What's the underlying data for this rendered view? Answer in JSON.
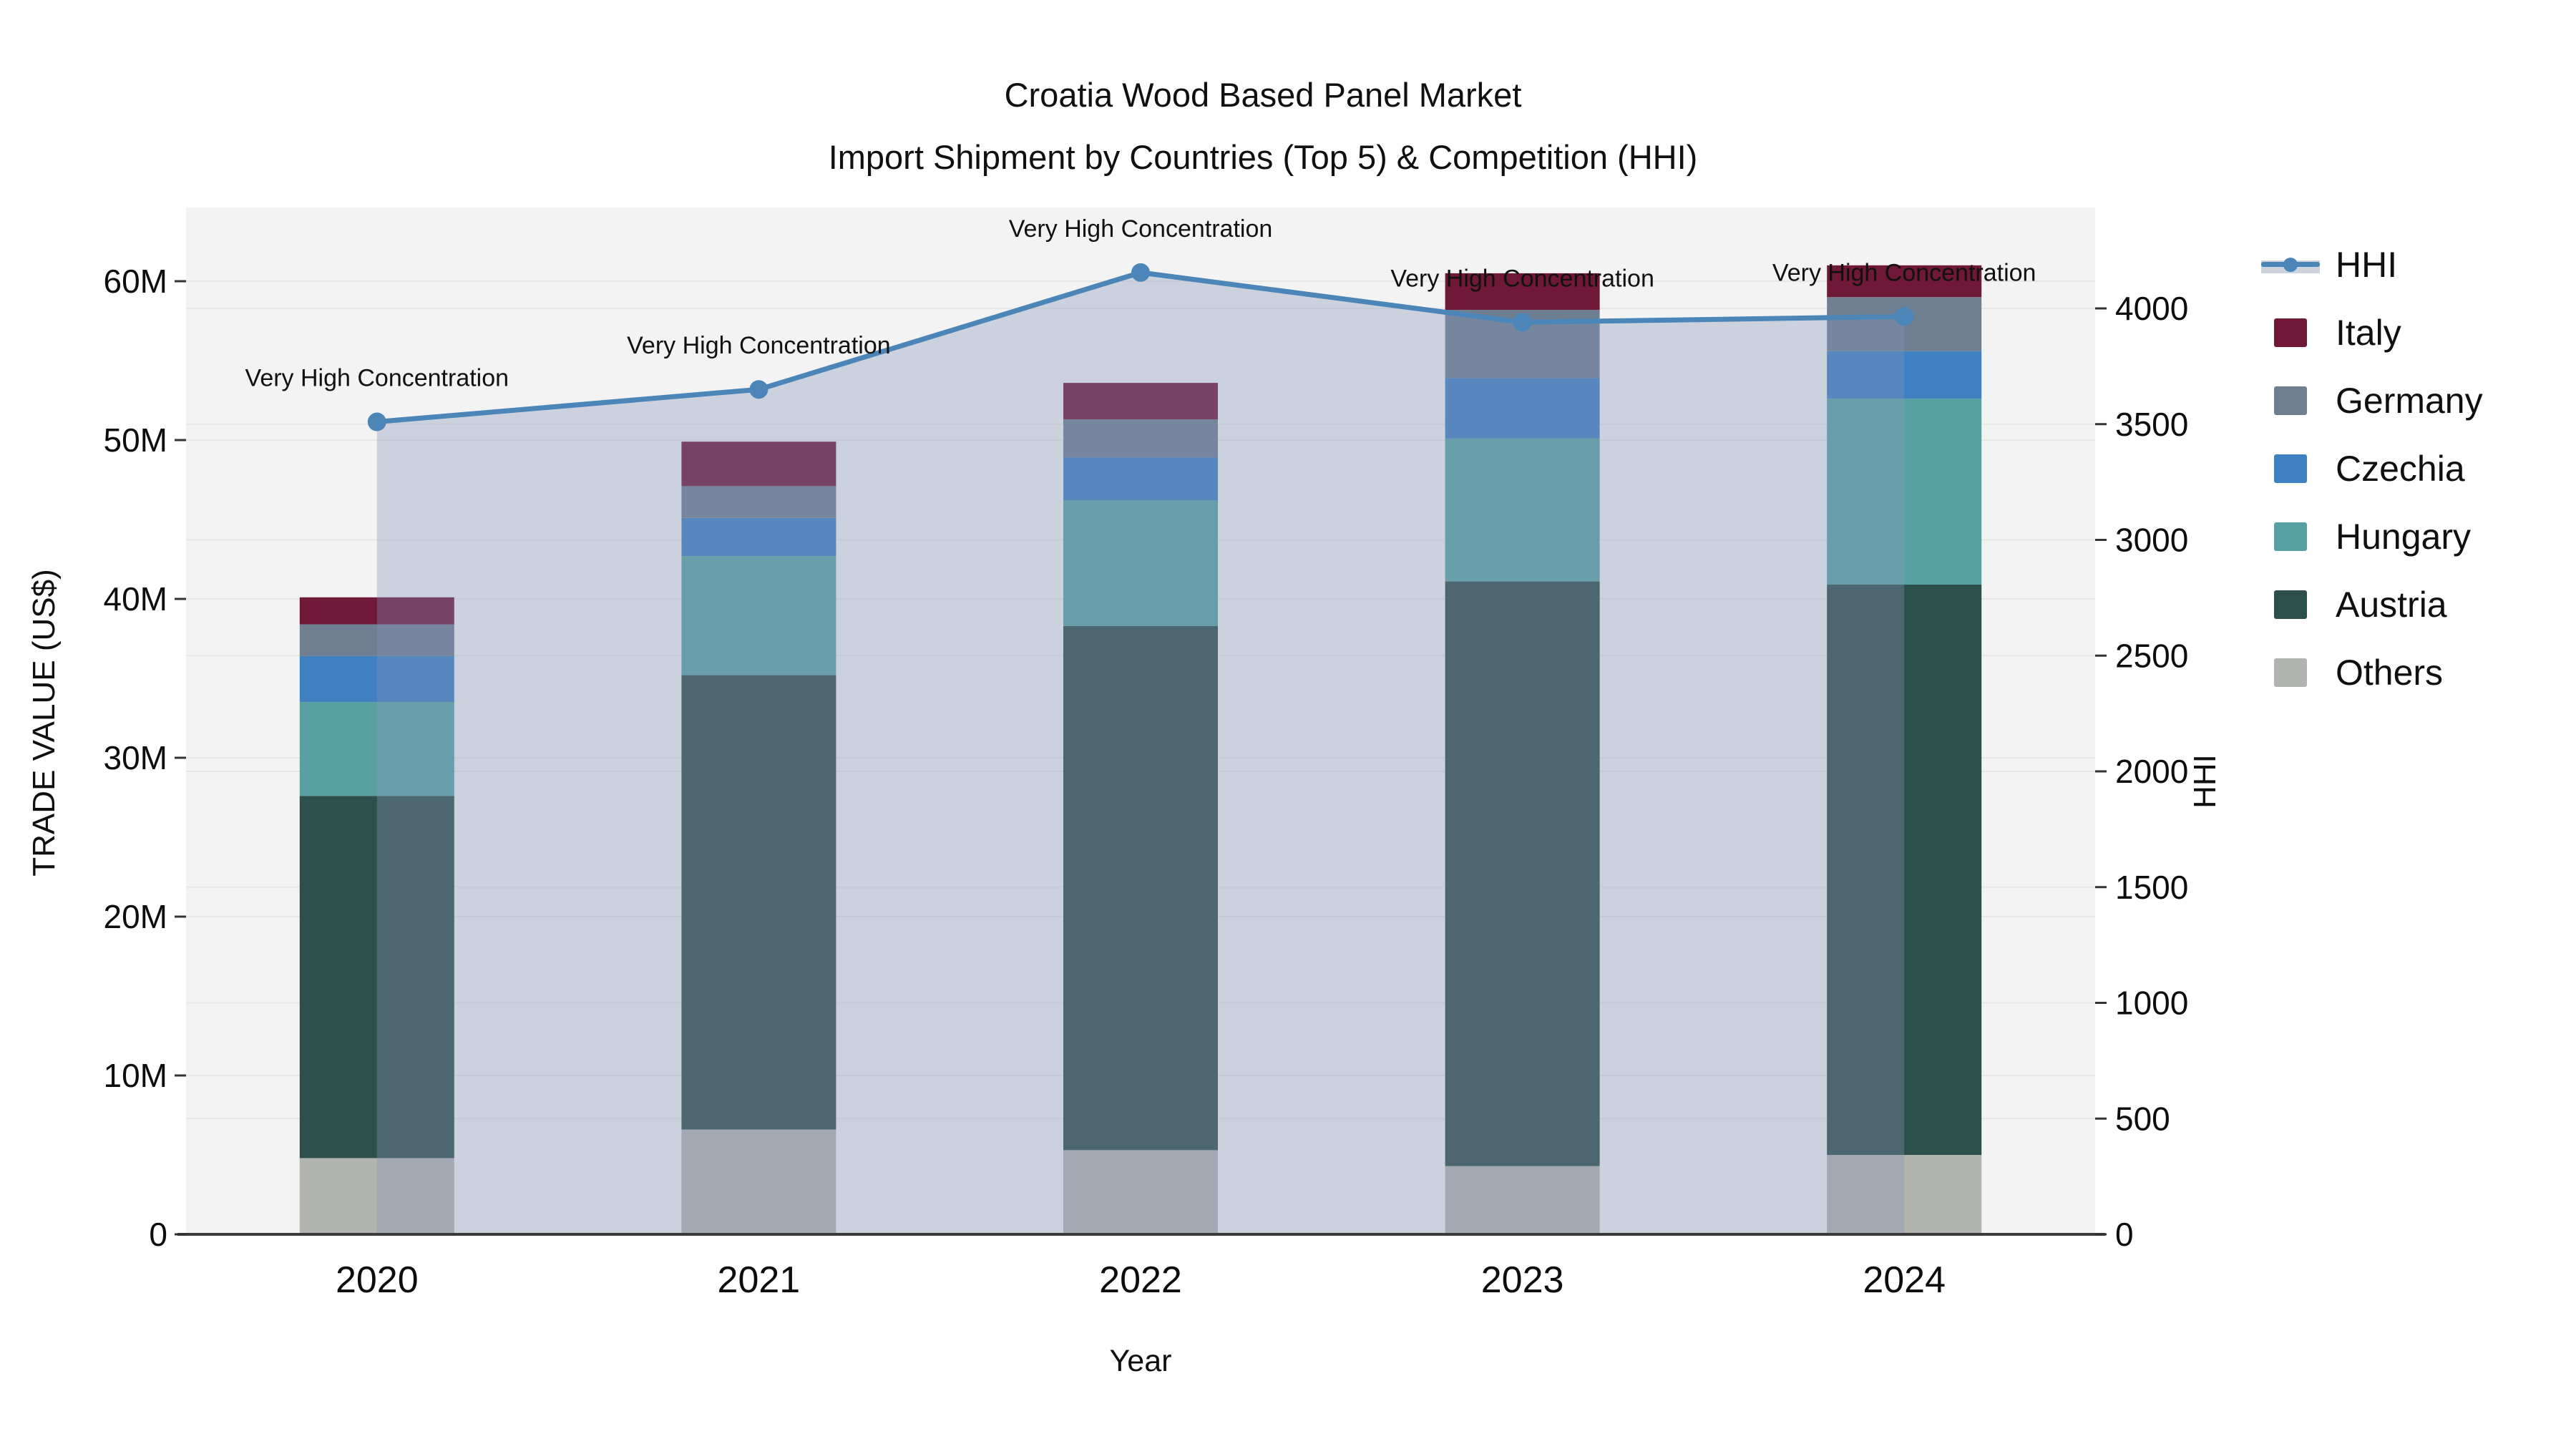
{
  "header": {
    "title": "Croatia Wood Based Panel Market",
    "subtitle": "Import Shipment by Countries (Top 5) & Competition (HHI)"
  },
  "axes": {
    "left": {
      "title": "TRADE VALUE (US$)",
      "tick_labels": [
        "0",
        "10M",
        "20M",
        "30M",
        "40M",
        "50M",
        "60M"
      ],
      "tick_values": [
        0,
        10,
        20,
        30,
        40,
        50,
        60
      ]
    },
    "right": {
      "title": "HHI",
      "tick_labels": [
        "0",
        "500",
        "1000",
        "1500",
        "2000",
        "2500",
        "3000",
        "3500",
        "4000"
      ],
      "tick_values": [
        0,
        500,
        1000,
        1500,
        2000,
        2500,
        3000,
        3500,
        4000
      ]
    },
    "x": {
      "title": "Year"
    }
  },
  "colors": {
    "plot_bg": "#f2f3f2",
    "grid": "#e7e8e6",
    "axis_line": "#3a3a3a",
    "hhi_line": "#4c86b9",
    "hhi_fill": "rgba(136,149,182,0.35)",
    "italy": "#6F1838",
    "germany": "#6D7F91",
    "czechia": "#3E80C0",
    "hungary": "#58A1A3",
    "austria": "#2D4F4C",
    "others": "#B2B4B0"
  },
  "legend": [
    {
      "label": "HHI",
      "type": "line",
      "color": "#4c86b9"
    },
    {
      "label": "Italy",
      "type": "swatch",
      "color": "#6F1838"
    },
    {
      "label": "Germany",
      "type": "swatch",
      "color": "#6D7F91"
    },
    {
      "label": "Czechia",
      "type": "swatch",
      "color": "#3E80C0"
    },
    {
      "label": "Hungary",
      "type": "swatch",
      "color": "#58A1A3"
    },
    {
      "label": "Austria",
      "type": "swatch",
      "color": "#2D4F4C"
    },
    {
      "label": "Others",
      "type": "swatch",
      "color": "#B2B4B1"
    }
  ],
  "chart_data": {
    "type": "bar",
    "subtype": "stacked-bars-with-line",
    "title": "Croatia Wood Based Panel Market",
    "subtitle": "Import Shipment by Countries (Top 5) & Competition (HHI)",
    "categories": [
      "2020",
      "2021",
      "2022",
      "2023",
      "2024"
    ],
    "xlabel": "Year",
    "ylabel_left": "TRADE VALUE (US$)",
    "ylabel_right": "HHI",
    "ylim_left_millions": [
      0,
      64.5
    ],
    "ylim_right": [
      0,
      4435
    ],
    "grid": true,
    "legend_position": "right",
    "series": [
      {
        "name": "Others",
        "color": "#B2B4B0",
        "values_millions": [
          4.8,
          6.6,
          5.3,
          4.3,
          5.0
        ]
      },
      {
        "name": "Austria",
        "color": "#2D4F4C",
        "values_millions": [
          22.8,
          28.6,
          33.0,
          36.8,
          35.9
        ]
      },
      {
        "name": "Hungary",
        "color": "#58A1A3",
        "values_millions": [
          5.9,
          7.5,
          7.9,
          9.0,
          11.7
        ]
      },
      {
        "name": "Czechia",
        "color": "#3E80C0",
        "values_millions": [
          2.9,
          2.4,
          2.7,
          3.8,
          3.0
        ]
      },
      {
        "name": "Germany",
        "color": "#6D7F91",
        "values_millions": [
          2.0,
          2.0,
          2.4,
          4.3,
          3.4
        ]
      },
      {
        "name": "Italy",
        "color": "#6F1838",
        "values_millions": [
          1.7,
          2.8,
          2.3,
          2.3,
          2.0
        ]
      }
    ],
    "bar_totals_millions": [
      40.1,
      49.9,
      53.6,
      60.5,
      61.0
    ],
    "line_series": {
      "name": "HHI",
      "axis": "right",
      "color": "#4c86b9",
      "values": [
        3510,
        3650,
        4155,
        3940,
        3965
      ]
    },
    "annotations": [
      {
        "x": "2020",
        "text": "Very High Concentration"
      },
      {
        "x": "2021",
        "text": "Very High Concentration"
      },
      {
        "x": "2022",
        "text": "Very High Concentration"
      },
      {
        "x": "2023",
        "text": "Very High Concentration"
      },
      {
        "x": "2024",
        "text": "Very High Concentration"
      }
    ]
  }
}
